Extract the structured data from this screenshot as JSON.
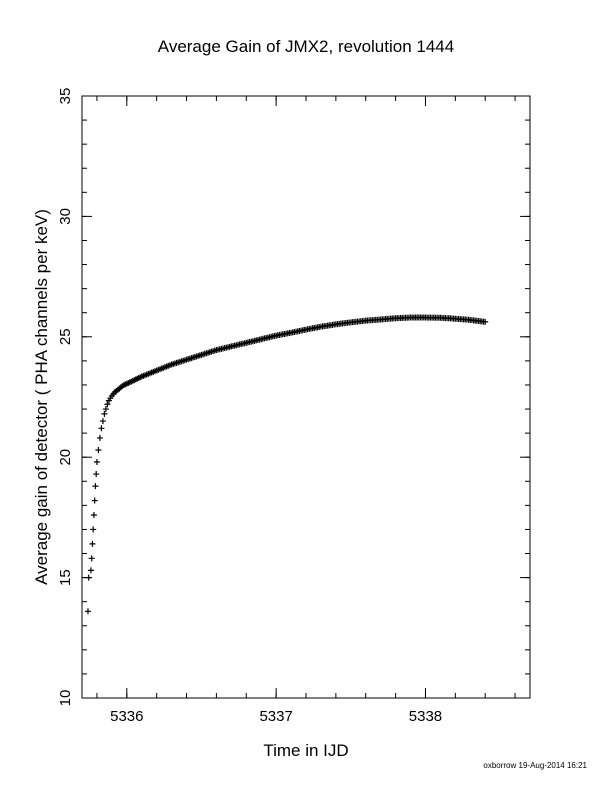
{
  "chart_data": {
    "type": "scatter",
    "title": "Average Gain of JMX2, revolution 1444",
    "xlabel": "Time in IJD",
    "ylabel": "Average gain of detector ( PHA channels per keV)",
    "xlim": [
      5335.7,
      5338.7
    ],
    "ylim": [
      10,
      35
    ],
    "xticks": [
      5336,
      5337,
      5338
    ],
    "yticks": [
      10,
      15,
      20,
      25,
      30,
      35
    ],
    "marker": "plus",
    "color": "#000000",
    "grid": false,
    "footnote": "oxborrow 19-Aug-2014 16:21",
    "series": [
      {
        "x": [
          5335.74,
          5335.745,
          5335.76,
          5335.765,
          5335.77,
          5335.775,
          5335.78,
          5335.785,
          5335.79,
          5335.795,
          5335.8,
          5335.81,
          5335.82,
          5335.83,
          5335.84,
          5335.85,
          5335.86,
          5335.87,
          5335.88,
          5335.89,
          5335.9,
          5335.92,
          5335.94,
          5335.96,
          5335.98,
          5336.0,
          5336.05,
          5336.1,
          5336.2,
          5336.3,
          5336.4,
          5336.5,
          5336.6,
          5336.7,
          5336.8,
          5336.9,
          5337.0,
          5337.1,
          5337.2,
          5337.3,
          5337.4,
          5337.5,
          5337.6,
          5337.7,
          5337.8,
          5337.9,
          5338.0,
          5338.1,
          5338.2,
          5338.3,
          5338.4
        ],
        "y": [
          13.6,
          15.0,
          15.3,
          15.8,
          16.4,
          17.0,
          17.6,
          18.2,
          18.8,
          19.3,
          19.8,
          20.3,
          20.8,
          21.2,
          21.5,
          21.8,
          22.0,
          22.2,
          22.35,
          22.45,
          22.55,
          22.7,
          22.8,
          22.9,
          23.0,
          23.05,
          23.2,
          23.35,
          23.6,
          23.85,
          24.05,
          24.25,
          24.45,
          24.6,
          24.75,
          24.9,
          25.05,
          25.17,
          25.3,
          25.42,
          25.52,
          25.6,
          25.67,
          25.72,
          25.77,
          25.8,
          25.8,
          25.79,
          25.75,
          25.7,
          25.62
        ]
      }
    ]
  }
}
